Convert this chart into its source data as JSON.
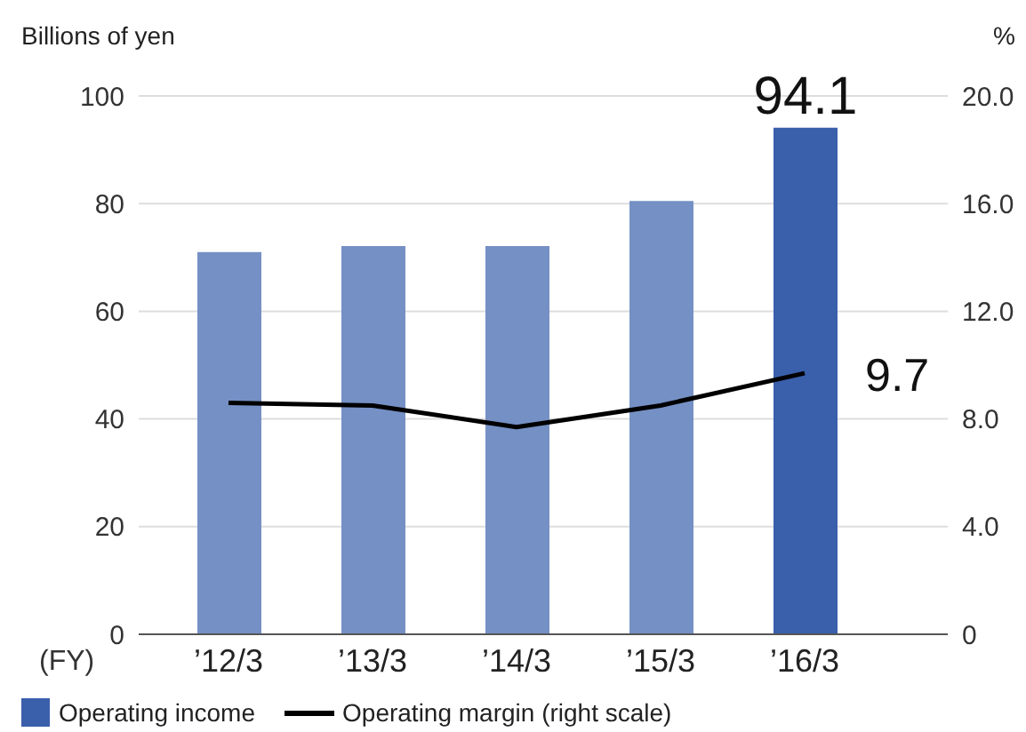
{
  "chart_data": {
    "type": "bar",
    "ylabel": "Billions of yen",
    "y2label": "%",
    "xlabel": "(FY)",
    "categories": [
      "’12/3",
      "’13/3",
      "’14/3",
      "’15/3",
      "’16/3"
    ],
    "series": [
      {
        "name": "Operating income",
        "color": "#3a5fab",
        "colors": [
          "#7590c4",
          "#7590c4",
          "#7590c4",
          "#7590c4",
          "#3a5fab"
        ],
        "values": [
          71.0,
          72.1,
          72.1,
          80.5,
          94.1
        ],
        "value_labels": [
          null,
          null,
          null,
          null,
          "94.1"
        ]
      },
      {
        "name": "Operating margin (right scale)",
        "type": "line",
        "axis": "y2",
        "color": "#000000",
        "values": [
          8.6,
          8.5,
          7.7,
          8.5,
          9.7
        ],
        "value_labels": [
          null,
          null,
          null,
          null,
          "9.7"
        ]
      }
    ],
    "ylim": [
      0,
      100
    ],
    "yticks": [
      0,
      20,
      40,
      60,
      80,
      100
    ],
    "y2lim": [
      0,
      20
    ],
    "y2ticks": [
      {
        "value": 0,
        "label": "0"
      },
      {
        "value": 4,
        "label": "4.0"
      },
      {
        "value": 8,
        "label": "8.0"
      },
      {
        "value": 12,
        "label": "12.0"
      },
      {
        "value": 16,
        "label": "16.0"
      },
      {
        "value": 20,
        "label": "20.0"
      }
    ],
    "grid": "y",
    "legend": "bottom",
    "marker": "none",
    "line_style": "solid"
  }
}
